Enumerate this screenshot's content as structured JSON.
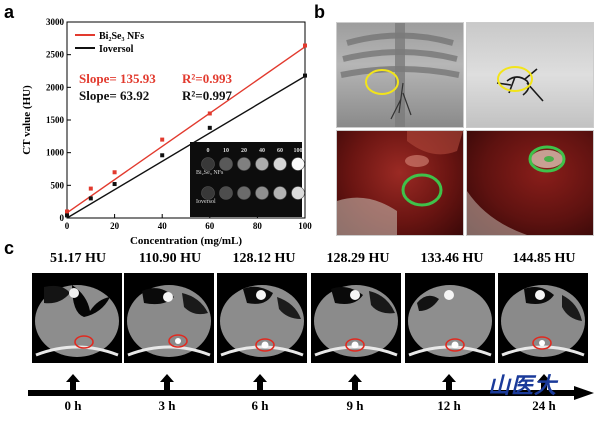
{
  "panels": {
    "a": "a",
    "b": "b",
    "c": "c"
  },
  "chart_data": {
    "type": "scatter",
    "xlabel": "Concentration (mg/mL)",
    "ylabel": "CT value (HU)",
    "xlim": [
      0,
      100
    ],
    "ylim": [
      0,
      3000
    ],
    "xticks": [
      0,
      20,
      40,
      60,
      80,
      100
    ],
    "yticks": [
      0,
      500,
      1000,
      1500,
      2000,
      2500,
      3000
    ],
    "legend_position": "top-left",
    "series": [
      {
        "name": "Bi₂Se₃ NFs",
        "color": "#e23a2e",
        "x": [
          0,
          10,
          20,
          40,
          60,
          100
        ],
        "y": [
          100,
          450,
          700,
          1200,
          1600,
          2640
        ],
        "fit": {
          "slope": 135.93,
          "intercept": 80
        }
      },
      {
        "name": "Ioversol",
        "color": "#111111",
        "x": [
          0,
          10,
          20,
          40,
          60,
          100
        ],
        "y": [
          40,
          300,
          520,
          960,
          1380,
          2180
        ],
        "fit": {
          "slope": 63.92,
          "intercept": 0,
          "scaled": 21.7
        }
      }
    ],
    "annotations": {
      "red": {
        "slope": "Slope= 135.93",
        "r2": "R²=0.993"
      },
      "black": {
        "slope": "Slope= 63.92",
        "r2": "R²=0.997"
      }
    },
    "inset": {
      "conc_labels": [
        "0",
        "10",
        "20",
        "40",
        "60",
        "100"
      ],
      "row_labels": [
        "Bi₂Se₃ NFs",
        "Ioversol"
      ],
      "row1_brightness": [
        0.22,
        0.35,
        0.5,
        0.68,
        0.84,
        0.98
      ],
      "row2_brightness": [
        0.22,
        0.3,
        0.42,
        0.56,
        0.7,
        0.86
      ]
    }
  },
  "timeline": {
    "hu_values": [
      "51.17 HU",
      "110.90 HU",
      "128.12 HU",
      "128.29 HU",
      "133.46 HU",
      "144.85 HU"
    ],
    "time_labels": [
      "0 h",
      "3 h",
      "6 h",
      "9 h",
      "12 h",
      "24 h"
    ]
  },
  "logo_text": "山医大"
}
